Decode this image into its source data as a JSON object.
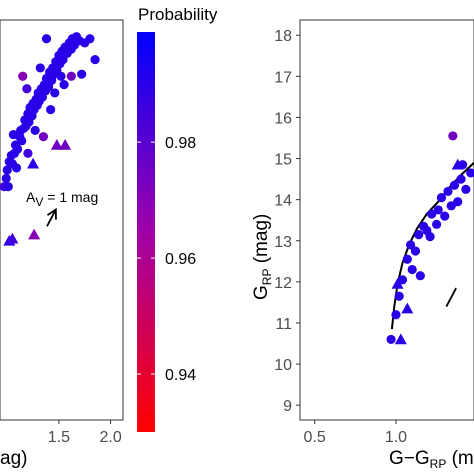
{
  "chart_data": [
    {
      "type": "scatter",
      "panel": "left",
      "xlabel_visible": "ag)",
      "x_ticks": [
        "1.5",
        "2.0"
      ],
      "xlim": [
        0.93,
        2.12
      ],
      "ylim": [
        17.6,
        8.0
      ],
      "annotation": {
        "text_main": "A",
        "text_sub": "V",
        "text_rest": " = 1 mag"
      },
      "reddening_vector": {
        "from": [
          1.385,
          12.65
        ],
        "to": [
          1.47,
          13.05
        ]
      },
      "circles": [
        [
          0.97,
          13.6,
          0.985
        ],
        [
          0.99,
          13.8,
          0.99
        ],
        [
          1.0,
          14.0,
          0.99
        ],
        [
          1.02,
          14.2,
          0.99
        ],
        [
          1.04,
          14.35,
          0.99
        ],
        [
          1.05,
          14.15,
          0.99
        ],
        [
          1.07,
          14.4,
          0.99
        ],
        [
          1.08,
          14.6,
          0.99
        ],
        [
          1.1,
          14.5,
          0.99
        ],
        [
          1.12,
          14.8,
          0.99
        ],
        [
          1.13,
          14.95,
          0.99
        ],
        [
          1.14,
          14.7,
          0.99
        ],
        [
          1.16,
          15.0,
          0.99
        ],
        [
          1.17,
          15.2,
          0.99
        ],
        [
          1.18,
          15.05,
          0.99
        ],
        [
          1.2,
          15.35,
          0.99
        ],
        [
          1.21,
          15.15,
          0.99
        ],
        [
          1.22,
          15.5,
          0.99
        ],
        [
          1.24,
          15.3,
          0.99
        ],
        [
          1.25,
          15.6,
          0.99
        ],
        [
          1.26,
          15.45,
          0.99
        ],
        [
          1.28,
          15.7,
          0.99
        ],
        [
          1.29,
          15.55,
          0.99
        ],
        [
          1.3,
          15.85,
          0.99
        ],
        [
          1.31,
          15.65,
          0.99
        ],
        [
          1.33,
          15.95,
          0.99
        ],
        [
          1.34,
          15.75,
          0.99
        ],
        [
          1.36,
          16.05,
          0.99
        ],
        [
          1.37,
          15.9,
          0.99
        ],
        [
          1.38,
          16.2,
          0.99
        ],
        [
          1.4,
          16.0,
          0.99
        ],
        [
          1.41,
          16.35,
          0.99
        ],
        [
          1.43,
          16.15,
          0.99
        ],
        [
          1.44,
          16.45,
          0.99
        ],
        [
          1.45,
          16.3,
          0.99
        ],
        [
          1.47,
          16.6,
          0.99
        ],
        [
          1.48,
          16.4,
          0.99
        ],
        [
          1.5,
          16.75,
          0.99
        ],
        [
          1.51,
          16.55,
          0.99
        ],
        [
          1.53,
          16.85,
          0.99
        ],
        [
          1.54,
          16.65,
          0.99
        ],
        [
          1.56,
          16.95,
          0.99
        ],
        [
          1.58,
          16.8,
          0.99
        ],
        [
          1.6,
          17.05,
          0.99
        ],
        [
          1.62,
          16.9,
          0.99
        ],
        [
          1.63,
          17.15,
          0.99
        ],
        [
          1.65,
          17.0,
          0.99
        ],
        [
          1.67,
          17.2,
          0.99
        ],
        [
          1.7,
          17.1,
          0.99
        ],
        [
          1.75,
          17.05,
          0.99
        ],
        [
          1.8,
          17.15,
          0.99
        ],
        [
          1.85,
          16.65,
          0.99
        ],
        [
          1.72,
          16.3,
          0.99
        ],
        [
          1.62,
          16.25,
          0.975
        ],
        [
          1.55,
          16.05,
          0.99
        ],
        [
          1.15,
          16.25,
          0.97
        ],
        [
          1.19,
          15.95,
          0.985
        ],
        [
          1.35,
          14.8,
          0.975
        ],
        [
          1.2,
          14.4,
          0.985
        ],
        [
          1.09,
          14.05,
          0.99
        ],
        [
          1.01,
          13.6,
          0.99
        ],
        [
          1.38,
          17.15,
          0.99
        ],
        [
          1.42,
          15.45,
          0.99
        ],
        [
          1.27,
          14.95,
          0.99
        ],
        [
          1.52,
          16.25,
          0.99
        ],
        [
          1.06,
          14.85,
          0.99
        ],
        [
          1.32,
          16.45,
          0.99
        ],
        [
          1.46,
          15.85,
          0.99
        ]
      ],
      "triangles": [
        [
          1.02,
          12.3,
          0.99
        ],
        [
          1.05,
          12.35,
          0.985
        ],
        [
          1.26,
          12.45,
          0.97
        ],
        [
          1.48,
          14.6,
          0.975
        ],
        [
          1.56,
          14.6,
          0.975
        ],
        [
          1.25,
          14.15,
          0.99
        ]
      ]
    },
    {
      "type": "scatter",
      "panel": "right",
      "xlabel_main": "G−G",
      "xlabel_sub": "RP",
      "xlabel_tail": " (m",
      "ylabel_main": "G",
      "ylabel_sub": "RP",
      "ylabel_tail": " (mag)",
      "x_ticks": [
        "0.5",
        "1.0"
      ],
      "x_tick_values": [
        0.5,
        1.0
      ],
      "y_ticks": [
        "9",
        "10",
        "11",
        "12",
        "13",
        "14",
        "15",
        "16",
        "17",
        "18"
      ],
      "y_tick_values": [
        9,
        10,
        11,
        12,
        13,
        14,
        15,
        16,
        17,
        18
      ],
      "xlim": [
        0.41,
        1.48
      ],
      "ylim": [
        18.37,
        8.64
      ],
      "isochrone": [
        [
          0.975,
          10.85
        ],
        [
          0.99,
          11.4
        ],
        [
          1.01,
          11.95
        ],
        [
          1.04,
          12.45
        ],
        [
          1.08,
          12.9
        ],
        [
          1.13,
          13.3
        ],
        [
          1.19,
          13.65
        ],
        [
          1.26,
          13.95
        ],
        [
          1.33,
          14.3
        ],
        [
          1.4,
          14.6
        ],
        [
          1.48,
          14.9
        ]
      ],
      "vector_stub": {
        "from": [
          1.31,
          11.4
        ],
        "to": [
          1.37,
          11.85
        ]
      },
      "circles": [
        [
          0.97,
          10.6,
          0.99
        ],
        [
          1.0,
          11.2,
          0.99
        ],
        [
          1.02,
          11.65,
          0.99
        ],
        [
          1.04,
          12.05,
          0.99
        ],
        [
          1.07,
          12.55,
          0.99
        ],
        [
          1.09,
          12.9,
          0.99
        ],
        [
          1.12,
          12.75,
          0.99
        ],
        [
          1.14,
          13.15,
          0.99
        ],
        [
          1.17,
          13.35,
          0.99
        ],
        [
          1.19,
          13.25,
          0.99
        ],
        [
          1.22,
          13.65,
          0.99
        ],
        [
          1.25,
          13.4,
          0.99
        ],
        [
          1.26,
          13.75,
          0.99
        ],
        [
          1.28,
          14.05,
          0.99
        ],
        [
          1.3,
          13.6,
          0.99
        ],
        [
          1.32,
          14.2,
          0.99
        ],
        [
          1.34,
          13.85,
          0.99
        ],
        [
          1.36,
          14.35,
          0.99
        ],
        [
          1.38,
          13.95,
          0.99
        ],
        [
          1.4,
          14.5,
          0.99
        ],
        [
          1.43,
          14.25,
          0.99
        ],
        [
          1.46,
          14.65,
          0.99
        ],
        [
          1.1,
          12.3,
          0.99
        ],
        [
          1.21,
          13.1,
          0.99
        ],
        [
          1.15,
          12.15,
          0.99
        ],
        [
          1.35,
          15.55,
          0.975
        ],
        [
          1.41,
          14.85,
          0.99
        ]
      ],
      "triangles": [
        [
          1.03,
          10.6,
          0.99
        ],
        [
          1.07,
          11.35,
          0.99
        ],
        [
          1.01,
          11.95,
          0.99
        ],
        [
          1.38,
          14.85,
          0.99
        ]
      ]
    },
    {
      "type": "colorbar",
      "title": "Probability",
      "ticks": [
        "0.98",
        "0.96",
        "0.94"
      ],
      "tick_values": [
        0.98,
        0.96,
        0.94
      ],
      "range": [
        0.93,
        0.999
      ],
      "colors": {
        "low": "#ff0000",
        "high": "#0000ff"
      }
    }
  ]
}
